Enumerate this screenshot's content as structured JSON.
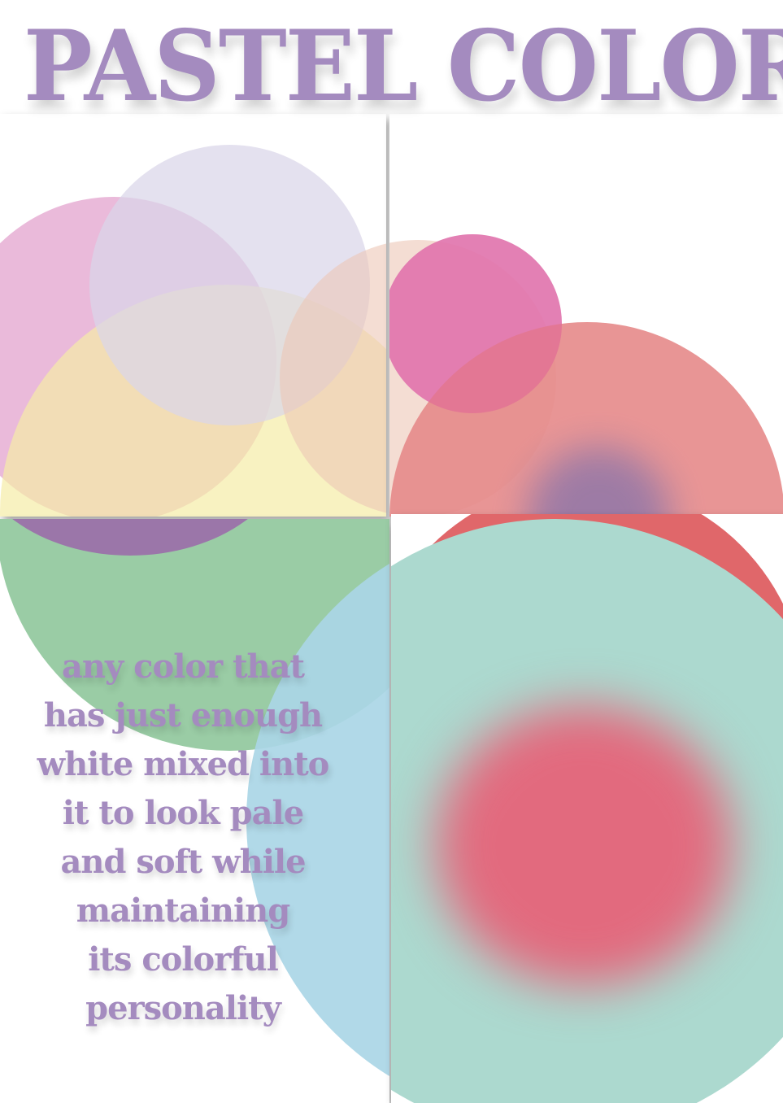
{
  "title": "PASTEL COLORS",
  "body_lines": [
    "any color that",
    "has just enough",
    "white mixed into",
    "it to look pale",
    "and soft while",
    "maintaining",
    "its colorful",
    "personality"
  ],
  "colors": {
    "title": "#a48bbf",
    "pink": "#e3a3cf",
    "lavender": "#dcd8ea",
    "peach": "#f0c3b0",
    "yellow": "#f5f0b4",
    "magenta": "#e088be",
    "coral": "#e58c8c",
    "purple": "#9a7bb0",
    "green": "#9ccca4",
    "red": "#e06a6c",
    "blue": "#a9d8e8",
    "mint": "#add9d0",
    "rose": "#e26a7e"
  }
}
